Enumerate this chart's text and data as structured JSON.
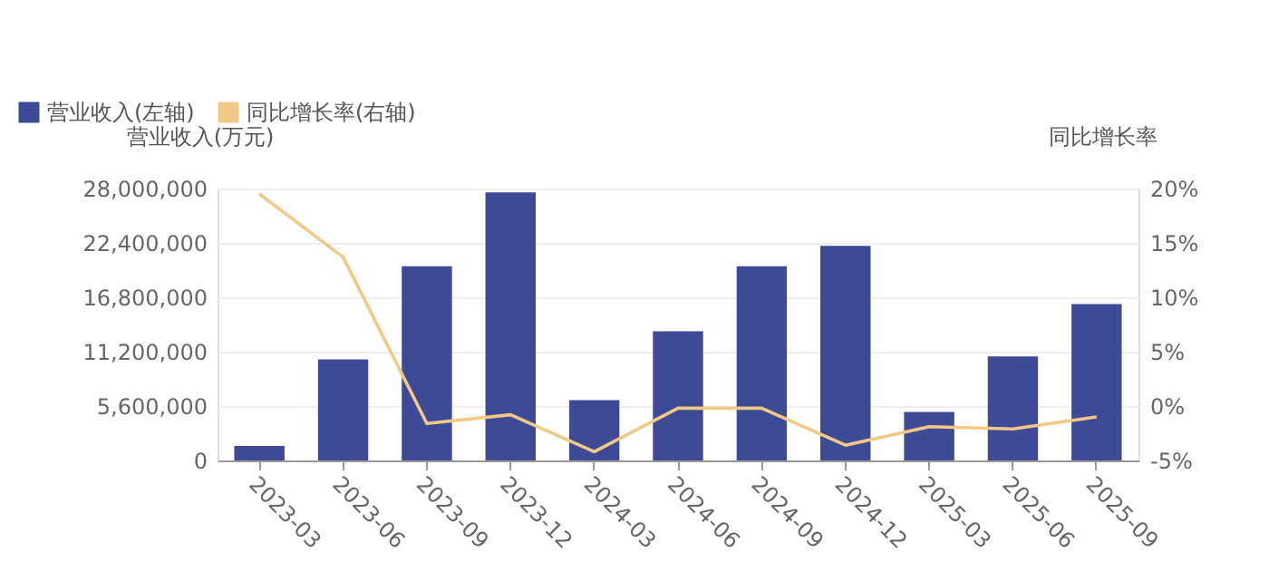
{
  "chart_data": {
    "type": "bar",
    "ylabel": "营业收入(万元)",
    "y2label": "同比增长率",
    "legend": "top left",
    "grid": "y",
    "categories": [
      "2023-03",
      "2023-06",
      "2023-09",
      "2023-12",
      "2024-03",
      "2024-06",
      "2024-09",
      "2024-12",
      "2025-03",
      "2025-06",
      "2025-09"
    ],
    "series": [
      {
        "name": "营业收入(左轴)",
        "color": "#3f4a96",
        "values": [
          1500000,
          10400000,
          20000000,
          27600000,
          6200000,
          13300000,
          20000000,
          22100000,
          5000000,
          10700000,
          16100000
        ]
      },
      {
        "name": "同比增长率(右轴)",
        "type": "line",
        "axis": "y2",
        "color": "#f0c987",
        "values": [
          19.5,
          13.7,
          -1.6,
          -0.8,
          -4.2,
          -0.2,
          -0.2,
          -3.6,
          -1.9,
          -2.1,
          -1.0
        ]
      }
    ],
    "ylim": [
      0,
      28000000
    ],
    "yticks": [
      {
        "value": 0,
        "label": "0"
      },
      {
        "value": 5600000,
        "label": "5,600,000"
      },
      {
        "value": 11200000,
        "label": "11,200,000"
      },
      {
        "value": 16800000,
        "label": "16,800,000"
      },
      {
        "value": 22400000,
        "label": "22,400,000"
      },
      {
        "value": 28000000,
        "label": "28,000,000"
      }
    ],
    "y2lim": [
      -5,
      20
    ],
    "y2ticks": [
      {
        "value": -5,
        "label": "-5%"
      },
      {
        "value": 0,
        "label": "0%"
      },
      {
        "value": 5,
        "label": "5%"
      },
      {
        "value": 10,
        "label": "10%"
      },
      {
        "value": 15,
        "label": "15%"
      },
      {
        "value": 20,
        "label": "20%"
      }
    ]
  }
}
